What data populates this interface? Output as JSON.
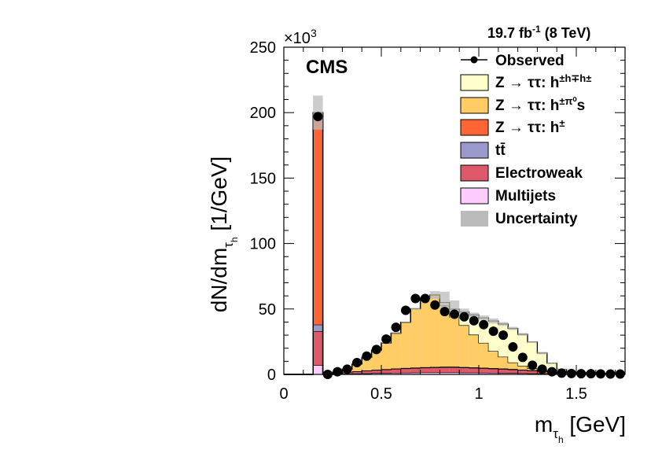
{
  "chart_data": {
    "type": "bar",
    "subtype": "stacked-histogram",
    "experiment_label": "CMS",
    "lumi_label": {
      "main": "19.7 fb",
      "sup": "-1",
      "tail": " (8 TeV)"
    },
    "xlabel": {
      "main": "m",
      "sub1": "τ",
      "sub2": "h",
      "unit": " [GeV]"
    },
    "ylabel": {
      "main": "dN/dm",
      "sub1": "τ",
      "sub2": "h",
      "unit": " [1/GeV]"
    },
    "y_multiplier": {
      "base": "×10",
      "exp": "3"
    },
    "xlim": [
      0,
      1.75
    ],
    "ylim": [
      0,
      250
    ],
    "x_ticks": [
      "0",
      "0.5",
      "1",
      "1.5"
    ],
    "x_tick_values": [
      0,
      0.5,
      1,
      1.5
    ],
    "y_ticks": [
      "0",
      "50",
      "100",
      "150",
      "200",
      "250"
    ],
    "y_tick_values": [
      0,
      50,
      100,
      150,
      200,
      250
    ],
    "bin_edges": [
      0.0,
      0.05,
      0.15,
      0.2,
      0.25,
      0.3,
      0.35,
      0.4,
      0.45,
      0.5,
      0.55,
      0.6,
      0.65,
      0.7,
      0.75,
      0.8,
      0.85,
      0.9,
      0.95,
      1.0,
      1.05,
      1.1,
      1.15,
      1.2,
      1.25,
      1.3,
      1.35,
      1.4,
      1.45,
      1.5,
      1.55,
      1.6,
      1.65,
      1.7,
      1.75
    ],
    "series": [
      {
        "name": "Multijets",
        "color": "#ffccff",
        "values": [
          0,
          0,
          7,
          0,
          0.3,
          0.5,
          0.7,
          0.8,
          1.0,
          1.1,
          1.2,
          1.3,
          1.4,
          1.5,
          1.5,
          1.5,
          1.5,
          1.4,
          1.4,
          1.3,
          1.2,
          1.1,
          1.0,
          0.9,
          0.8,
          0.7,
          0.6,
          0.5,
          0.4,
          0.3,
          0.2,
          0.1,
          0.1,
          0.1
        ]
      },
      {
        "name": "Electroweak",
        "color": "#de5a6a",
        "values": [
          0,
          0,
          26,
          0,
          0.5,
          1.0,
          1.5,
          2.0,
          2.3,
          2.6,
          3.0,
          3.2,
          3.4,
          3.6,
          3.8,
          4.0,
          4.0,
          3.8,
          3.6,
          3.4,
          3.2,
          3.0,
          2.7,
          2.4,
          2.1,
          1.8,
          1.5,
          1.2,
          1.0,
          0.8,
          0.6,
          0.4,
          0.3,
          0.2
        ]
      },
      {
        "name": "tt̄",
        "color": "#9999cc",
        "values": [
          0,
          0,
          5,
          0,
          0.1,
          0.1,
          0.2,
          0.2,
          0.3,
          0.3,
          0.3,
          0.4,
          0.4,
          0.4,
          0.4,
          0.4,
          0.4,
          0.4,
          0.4,
          0.4,
          0.4,
          0.4,
          0.4,
          0.3,
          0.3,
          0.3,
          0.3,
          0.2,
          0.2,
          0.2,
          0.2,
          0.1,
          0.1,
          0.1
        ]
      },
      {
        "name": "Z → ττ: h±",
        "color": "#ff6633",
        "values": [
          0,
          0,
          162,
          0,
          0,
          0,
          0,
          0,
          0,
          0,
          0,
          0,
          0,
          0,
          0,
          0,
          0,
          0,
          0,
          0,
          0,
          0,
          0,
          0,
          0,
          0,
          0,
          0,
          0,
          0,
          0,
          0,
          0,
          0
        ]
      },
      {
        "name": "Z → ττ: h±π⁰s",
        "color": "#ffcc66",
        "values": [
          0,
          0,
          0,
          0,
          0.8,
          2.5,
          5.5,
          10,
          15,
          20,
          27,
          35,
          45,
          53,
          55,
          47,
          38,
          32,
          25,
          19,
          13,
          9,
          5,
          3,
          1.5,
          0.5,
          0.2,
          0,
          0,
          0,
          0,
          0,
          0,
          0
        ]
      },
      {
        "name": "Z → ττ: h±h∓h±",
        "color": "#ffffcc",
        "values": [
          0,
          0,
          0,
          0,
          0,
          0,
          0,
          0,
          0,
          0,
          0,
          0,
          0,
          0,
          0,
          2,
          6,
          10,
          15,
          19,
          23,
          25,
          26,
          24,
          20,
          13,
          6,
          2,
          0,
          0,
          0,
          0,
          0,
          0
        ]
      }
    ],
    "observed": {
      "name": "Observed",
      "x": [
        0.175,
        0.225,
        0.275,
        0.325,
        0.375,
        0.425,
        0.475,
        0.525,
        0.575,
        0.625,
        0.675,
        0.725,
        0.775,
        0.825,
        0.875,
        0.925,
        0.975,
        1.025,
        1.075,
        1.125,
        1.175,
        1.225,
        1.275,
        1.325,
        1.375,
        1.425,
        1.475,
        1.525,
        1.575,
        1.625,
        1.675,
        1.725
      ],
      "y": [
        197,
        0,
        2,
        4,
        9,
        14,
        19,
        27,
        36,
        49,
        58,
        58,
        53,
        48,
        46,
        44,
        41,
        38,
        33,
        30,
        21,
        13,
        7,
        4,
        2,
        1,
        0.7,
        0.5,
        0.5,
        0.4,
        0.3,
        0.3
      ]
    },
    "uncertainty_top": [
      0,
      0,
      213,
      0,
      1.8,
      4.2,
      8.1,
      13.3,
      18.9,
      24.3,
      31.8,
      40.2,
      50.8,
      59.4,
      63.6,
      63.2,
      56.5,
      50.3,
      47.2,
      45.0,
      42.8,
      40.0,
      36.3,
      31.6,
      25.1,
      17.2,
      9.0,
      4.2,
      1.7,
      1.3,
      1.0,
      0.6,
      0.5,
      0.4
    ],
    "legend": {
      "position": "top-right",
      "entries": [
        {
          "label": "Observed",
          "kind": "marker"
        },
        {
          "label_main": "Z  → ττ: h",
          "label_sup": "±h∓h±",
          "color": "#ffffcc",
          "kind": "box"
        },
        {
          "label_main": "Z  → ττ: h",
          "label_sup": "±π⁰",
          "label_tail": "s",
          "color": "#ffcc66",
          "kind": "box"
        },
        {
          "label_main": "Z  → ττ: h",
          "label_sup": "±",
          "color": "#ff6633",
          "kind": "box"
        },
        {
          "label": "tt̄",
          "color": "#9999cc",
          "kind": "box"
        },
        {
          "label": "Electroweak",
          "color": "#de5a6a",
          "kind": "box"
        },
        {
          "label": "Multijets",
          "color": "#ffccff",
          "kind": "box"
        },
        {
          "label": "Uncertainty",
          "color": "#bbbbbb",
          "kind": "box"
        }
      ]
    }
  }
}
